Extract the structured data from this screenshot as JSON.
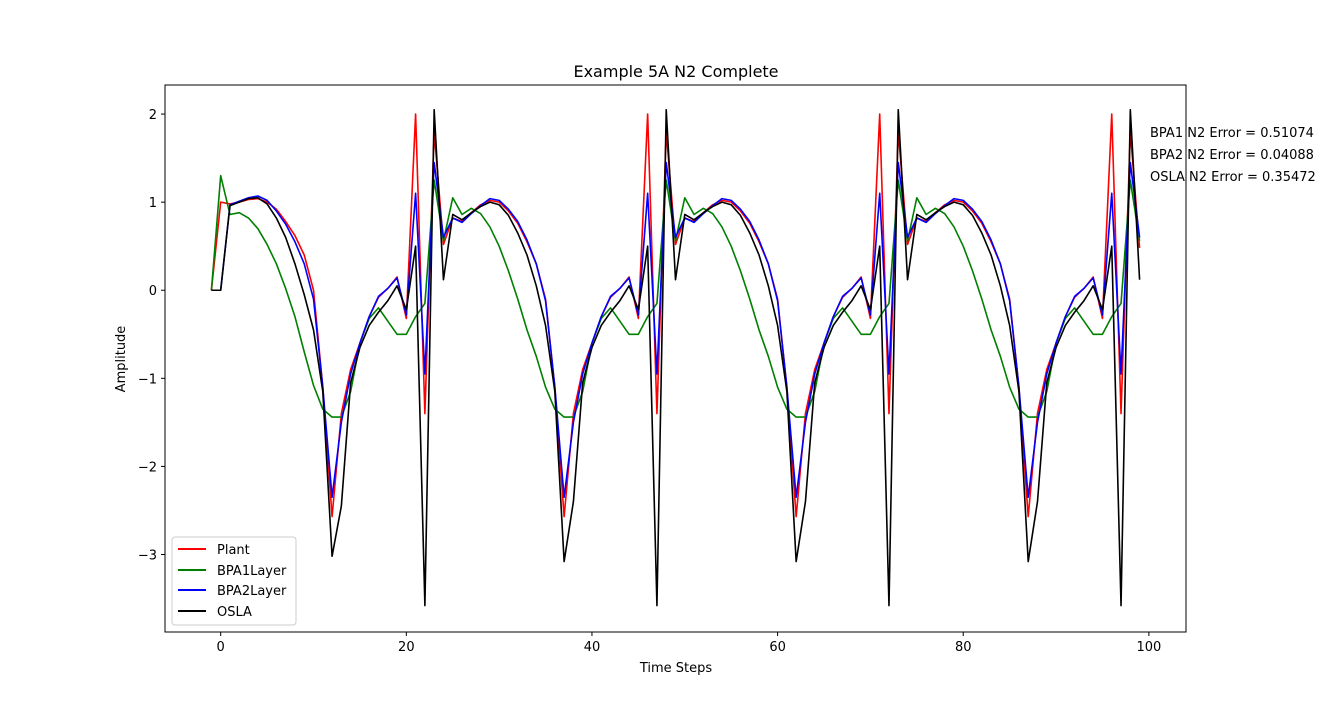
{
  "chart_data": {
    "type": "line",
    "title": "Example 5A N2 Complete",
    "xlabel": "Time Steps",
    "ylabel": "Amplitude",
    "xlim": [
      -6.0,
      104.0
    ],
    "ylim": [
      -3.88,
      2.33
    ],
    "xticks": [
      0,
      20,
      40,
      60,
      80,
      100
    ],
    "yticks": [
      -3,
      -2,
      -1,
      0,
      1,
      2
    ],
    "xtick_labels": [
      "0",
      "20",
      "40",
      "60",
      "80",
      "100"
    ],
    "ytick_labels": [
      "−3",
      "−2",
      "−1",
      "0",
      "1",
      "2"
    ],
    "grid": false,
    "legend_position": "lower-left",
    "annotations": [
      "BPA1 N2 Error = 0.51074",
      "BPA2 N2 Error = 0.04088",
      "OSLA N2 Error = 0.35472"
    ],
    "x": [
      -1,
      0,
      1,
      2,
      3,
      4,
      5,
      6,
      7,
      8,
      9,
      10,
      11,
      12,
      13,
      14,
      15,
      16,
      17,
      18,
      19,
      20,
      21,
      22,
      23,
      24,
      25,
      26,
      27,
      28,
      29,
      30,
      31,
      32,
      33,
      34,
      35,
      36,
      37,
      38,
      39,
      40,
      41,
      42,
      43,
      44,
      45,
      46,
      47,
      48,
      49,
      50,
      51,
      52,
      53,
      54,
      55,
      56,
      57,
      58,
      59,
      60,
      61,
      62,
      63,
      64,
      65,
      66,
      67,
      68,
      69,
      70,
      71,
      72,
      73,
      74,
      75,
      76,
      77,
      78,
      79,
      80,
      81,
      82,
      83,
      84,
      85,
      86,
      87,
      88,
      89,
      90,
      91,
      92,
      93,
      94,
      95,
      96,
      97,
      98,
      99
    ],
    "series": [
      {
        "name": "Plant",
        "color": "#ff0000",
        "values": [
          0.0,
          1.0,
          0.98,
          1.0,
          1.03,
          1.04,
          1.0,
          0.92,
          0.78,
          0.62,
          0.4,
          0.0,
          -1.1,
          -2.57,
          -1.4,
          -0.9,
          -0.6,
          -0.3,
          -0.08,
          0.02,
          0.15,
          -0.32,
          2.0,
          -1.4,
          1.8,
          0.52,
          0.82,
          0.78,
          0.88,
          0.97,
          1.02,
          1.0,
          0.9,
          0.76,
          0.55,
          0.3,
          -0.1,
          -1.1,
          -2.57,
          -1.4,
          -0.9,
          -0.6,
          -0.3,
          -0.08,
          0.02,
          0.15,
          -0.32,
          2.0,
          -1.4,
          1.8,
          0.52,
          0.82,
          0.78,
          0.88,
          0.97,
          1.02,
          1.0,
          0.9,
          0.76,
          0.55,
          0.3,
          -0.1,
          -1.1,
          -2.57,
          -1.4,
          -0.9,
          -0.6,
          -0.3,
          -0.08,
          0.02,
          0.15,
          -0.32,
          2.0,
          -1.4,
          1.8,
          0.52,
          0.82,
          0.78,
          0.88,
          0.97,
          1.02,
          1.0,
          0.9,
          0.76,
          0.55,
          0.3,
          -0.1,
          -1.1,
          -2.57,
          -1.4,
          -0.9,
          -0.6,
          -0.3,
          -0.08,
          0.02,
          0.15,
          -0.32,
          2.0,
          -1.4,
          1.8,
          0.48
        ]
      },
      {
        "name": "BPA1Layer",
        "color": "#008000",
        "values": [
          0.0,
          1.3,
          0.86,
          0.88,
          0.82,
          0.7,
          0.52,
          0.3,
          0.02,
          -0.3,
          -0.7,
          -1.08,
          -1.35,
          -1.44,
          -1.44,
          -1.15,
          -0.6,
          -0.32,
          -0.2,
          -0.35,
          -0.5,
          -0.5,
          -0.3,
          -0.15,
          1.25,
          0.56,
          1.05,
          0.86,
          0.93,
          0.87,
          0.72,
          0.5,
          0.22,
          -0.1,
          -0.45,
          -0.75,
          -1.1,
          -1.35,
          -1.44,
          -1.44,
          -1.15,
          -0.6,
          -0.32,
          -0.2,
          -0.35,
          -0.5,
          -0.5,
          -0.3,
          -0.15,
          1.25,
          0.56,
          1.05,
          0.86,
          0.93,
          0.87,
          0.72,
          0.5,
          0.22,
          -0.1,
          -0.45,
          -0.75,
          -1.1,
          -1.35,
          -1.44,
          -1.44,
          -1.15,
          -0.6,
          -0.32,
          -0.2,
          -0.35,
          -0.5,
          -0.5,
          -0.3,
          -0.15,
          1.25,
          0.56,
          1.05,
          0.86,
          0.93,
          0.87,
          0.72,
          0.5,
          0.22,
          -0.1,
          -0.45,
          -0.75,
          -1.1,
          -1.35,
          -1.44,
          -1.44,
          -1.15,
          -0.6,
          -0.32,
          -0.2,
          -0.35,
          -0.5,
          -0.5,
          -0.3,
          -0.15,
          1.25,
          0.56
        ]
      },
      {
        "name": "BPA2Layer",
        "color": "#0000ff",
        "values": [
          0.0,
          0.0,
          0.97,
          1.01,
          1.05,
          1.07,
          1.02,
          0.9,
          0.75,
          0.55,
          0.3,
          -0.1,
          -1.1,
          -2.35,
          -1.5,
          -0.95,
          -0.6,
          -0.3,
          -0.07,
          0.02,
          0.14,
          -0.28,
          1.1,
          -0.95,
          1.45,
          0.6,
          0.82,
          0.77,
          0.87,
          0.96,
          1.04,
          1.02,
          0.92,
          0.78,
          0.57,
          0.3,
          -0.12,
          -1.1,
          -2.35,
          -1.5,
          -0.95,
          -0.6,
          -0.3,
          -0.07,
          0.02,
          0.14,
          -0.28,
          1.1,
          -0.95,
          1.45,
          0.6,
          0.82,
          0.77,
          0.87,
          0.96,
          1.04,
          1.02,
          0.92,
          0.78,
          0.57,
          0.3,
          -0.12,
          -1.1,
          -2.35,
          -1.5,
          -0.95,
          -0.6,
          -0.3,
          -0.07,
          0.02,
          0.14,
          -0.28,
          1.1,
          -0.95,
          1.45,
          0.6,
          0.82,
          0.77,
          0.87,
          0.96,
          1.04,
          1.02,
          0.92,
          0.78,
          0.57,
          0.3,
          -0.12,
          -1.1,
          -2.35,
          -1.5,
          -0.95,
          -0.6,
          -0.3,
          -0.07,
          0.02,
          0.14,
          -0.28,
          1.1,
          -0.95,
          1.45,
          0.6
        ]
      },
      {
        "name": "OSLA",
        "color": "#000000",
        "values": [
          0.0,
          0.0,
          0.96,
          1.0,
          1.04,
          1.05,
          0.98,
          0.82,
          0.6,
          0.3,
          -0.05,
          -0.45,
          -1.15,
          -3.02,
          -2.45,
          -1.05,
          -0.65,
          -0.4,
          -0.25,
          -0.12,
          0.05,
          -0.22,
          0.5,
          -3.58,
          2.05,
          0.12,
          0.86,
          0.8,
          0.88,
          0.95,
          1.0,
          0.97,
          0.85,
          0.65,
          0.4,
          0.05,
          -0.4,
          -1.15,
          -3.08,
          -2.4,
          -1.05,
          -0.65,
          -0.4,
          -0.25,
          -0.12,
          0.05,
          -0.22,
          0.5,
          -3.58,
          2.05,
          0.12,
          0.86,
          0.8,
          0.88,
          0.95,
          1.0,
          0.97,
          0.85,
          0.65,
          0.4,
          0.05,
          -0.4,
          -1.15,
          -3.08,
          -2.4,
          -1.05,
          -0.65,
          -0.4,
          -0.25,
          -0.12,
          0.05,
          -0.22,
          0.5,
          -3.58,
          2.05,
          0.12,
          0.86,
          0.8,
          0.88,
          0.95,
          1.0,
          0.97,
          0.85,
          0.65,
          0.4,
          0.05,
          -0.4,
          -1.15,
          -3.08,
          -2.4,
          -1.05,
          -0.65,
          -0.4,
          -0.25,
          -0.12,
          0.05,
          -0.22,
          0.5,
          -3.58,
          2.05,
          0.12
        ]
      }
    ]
  }
}
